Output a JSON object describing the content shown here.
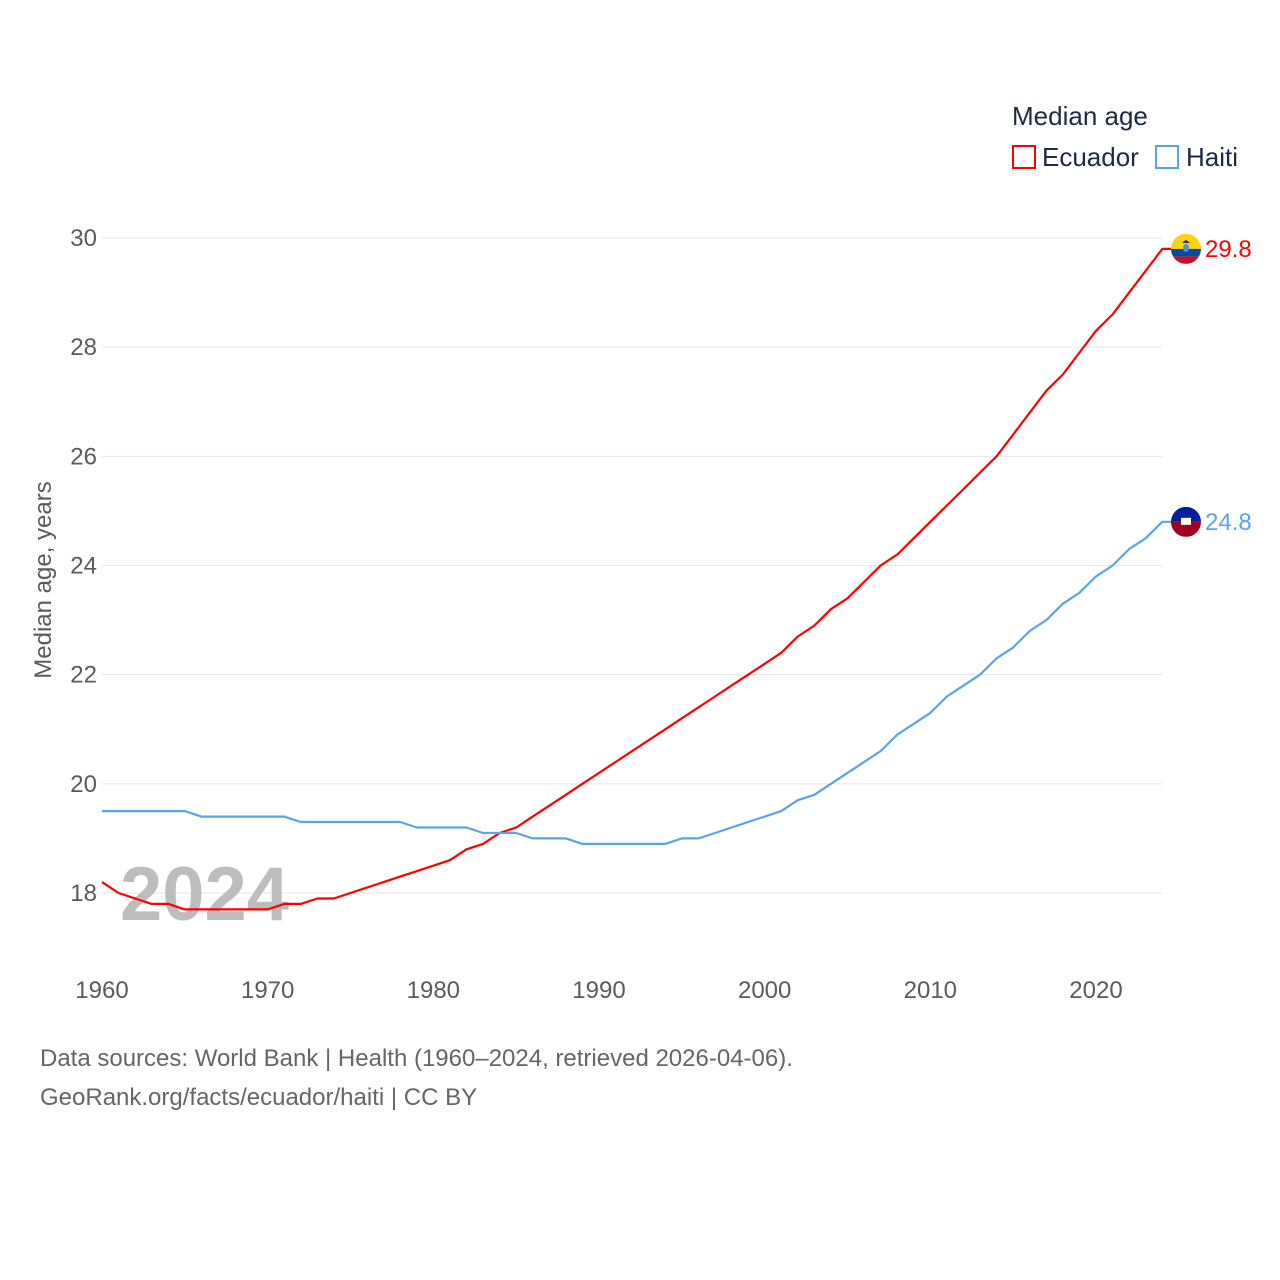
{
  "chart_data": {
    "type": "line",
    "title": "",
    "ylabel": "Median age, years",
    "xlabel": "",
    "watermark_year": "2024",
    "legend": {
      "title": "Median age",
      "position": "top-right"
    },
    "xlim": [
      1960,
      2024
    ],
    "ylim": [
      17,
      30
    ],
    "xticks": [
      "1960",
      "1970",
      "1980",
      "1990",
      "2000",
      "2010",
      "2020"
    ],
    "yticks": [
      "18",
      "20",
      "22",
      "24",
      "26",
      "28",
      "30"
    ],
    "grid": true,
    "x": [
      1960,
      1961,
      1962,
      1963,
      1964,
      1965,
      1966,
      1967,
      1968,
      1969,
      1970,
      1971,
      1972,
      1973,
      1974,
      1975,
      1976,
      1977,
      1978,
      1979,
      1980,
      1981,
      1982,
      1983,
      1984,
      1985,
      1986,
      1987,
      1988,
      1989,
      1990,
      1991,
      1992,
      1993,
      1994,
      1995,
      1996,
      1997,
      1998,
      1999,
      2000,
      2001,
      2002,
      2003,
      2004,
      2005,
      2006,
      2007,
      2008,
      2009,
      2010,
      2011,
      2012,
      2013,
      2014,
      2015,
      2016,
      2017,
      2018,
      2019,
      2020,
      2021,
      2022,
      2023,
      2024
    ],
    "series": [
      {
        "name": "Ecuador",
        "color": "#ff0000",
        "end_label": "29.8",
        "values": [
          18.2,
          18.0,
          17.9,
          17.8,
          17.8,
          17.7,
          17.7,
          17.7,
          17.7,
          17.7,
          17.7,
          17.8,
          17.8,
          17.9,
          17.9,
          18.0,
          18.1,
          18.2,
          18.3,
          18.4,
          18.5,
          18.6,
          18.8,
          18.9,
          19.1,
          19.2,
          19.4,
          19.6,
          19.8,
          20.0,
          20.2,
          20.4,
          20.6,
          20.8,
          21.0,
          21.2,
          21.4,
          21.6,
          21.8,
          22.0,
          22.2,
          22.4,
          22.7,
          22.9,
          23.2,
          23.4,
          23.7,
          24.0,
          24.2,
          24.5,
          24.8,
          25.1,
          25.4,
          25.7,
          26.0,
          26.4,
          26.8,
          27.2,
          27.5,
          27.9,
          28.3,
          28.6,
          29.0,
          29.4,
          29.8
        ]
      },
      {
        "name": "Haiti",
        "color": "#5ba4ec",
        "end_label": "24.8",
        "values": [
          19.5,
          19.5,
          19.5,
          19.5,
          19.5,
          19.5,
          19.4,
          19.4,
          19.4,
          19.4,
          19.4,
          19.4,
          19.3,
          19.3,
          19.3,
          19.3,
          19.3,
          19.3,
          19.3,
          19.2,
          19.2,
          19.2,
          19.2,
          19.1,
          19.1,
          19.1,
          19.0,
          19.0,
          19.0,
          18.9,
          18.9,
          18.9,
          18.9,
          18.9,
          18.9,
          19.0,
          19.0,
          19.1,
          19.2,
          19.3,
          19.4,
          19.5,
          19.7,
          19.8,
          20.0,
          20.2,
          20.4,
          20.6,
          20.9,
          21.1,
          21.3,
          21.6,
          21.8,
          22.0,
          22.3,
          22.5,
          22.8,
          23.0,
          23.3,
          23.5,
          23.8,
          24.0,
          24.3,
          24.5,
          24.8
        ]
      }
    ]
  },
  "source": {
    "line1": "Data sources: World Bank | Health (1960–2024, retrieved 2026-04-06).",
    "line2": "GeoRank.org/facts/ecuador/haiti | CC BY"
  }
}
